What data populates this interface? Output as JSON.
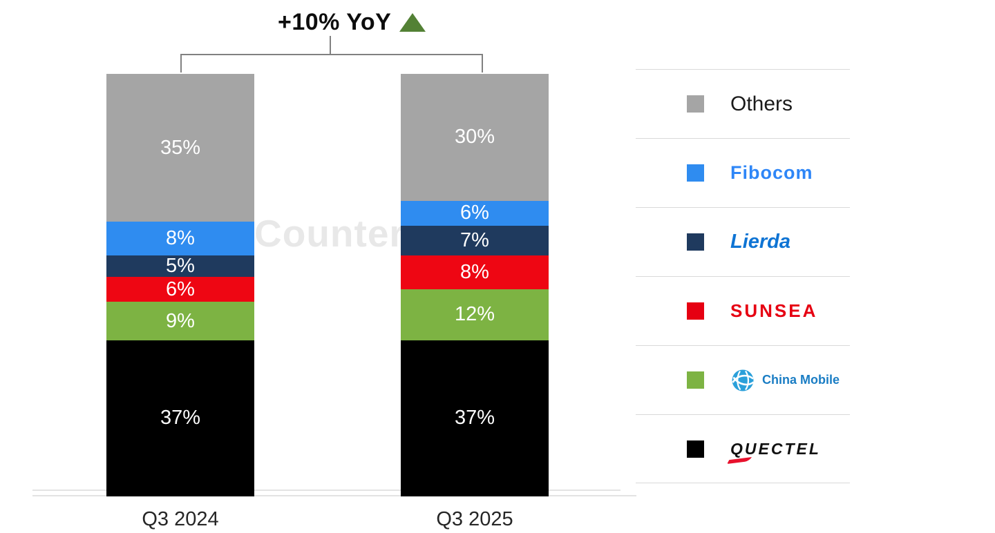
{
  "annotation": {
    "label": "+10% YoY"
  },
  "watermark": {
    "text": "Counterp"
  },
  "chart_data": {
    "type": "bar",
    "stacked": true,
    "title": "+10% YoY",
    "categories": [
      "Q3 2024",
      "Q3 2025"
    ],
    "series": [
      {
        "name": "Quectel",
        "color": "#000000",
        "values": [
          37,
          37
        ]
      },
      {
        "name": "China Mobile",
        "color": "#7db343",
        "values": [
          9,
          12
        ]
      },
      {
        "name": "Sunsea",
        "color": "#ee0613",
        "values": [
          6,
          8
        ]
      },
      {
        "name": "Lierda",
        "color": "#1f3a5e",
        "values": [
          5,
          7
        ]
      },
      {
        "name": "Fibocom",
        "color": "#2f8cf0",
        "values": [
          8,
          6
        ]
      },
      {
        "name": "Others",
        "color": "#a5a5a5",
        "values": [
          35,
          30
        ]
      }
    ],
    "value_suffix": "%",
    "ylim": [
      0,
      100
    ],
    "grid": false,
    "legend_position": "right"
  },
  "legend": {
    "items": [
      {
        "label": "Others",
        "color": "#a5a5a5"
      },
      {
        "label": "Fibocom",
        "color": "#2f8cf0"
      },
      {
        "label": "Lierda",
        "color": "#1f3a5e"
      },
      {
        "label": "SUNSEA",
        "color": "#e60012"
      },
      {
        "label": "China Mobile",
        "color": "#7db343"
      },
      {
        "label": "QUECTEL",
        "color": "#000000"
      }
    ]
  },
  "colors": {
    "annotation_triangle": "#538135",
    "bracket_line": "#808080",
    "watermark_text": "#e8e8e8",
    "axis_line": "#e3e3e3"
  }
}
